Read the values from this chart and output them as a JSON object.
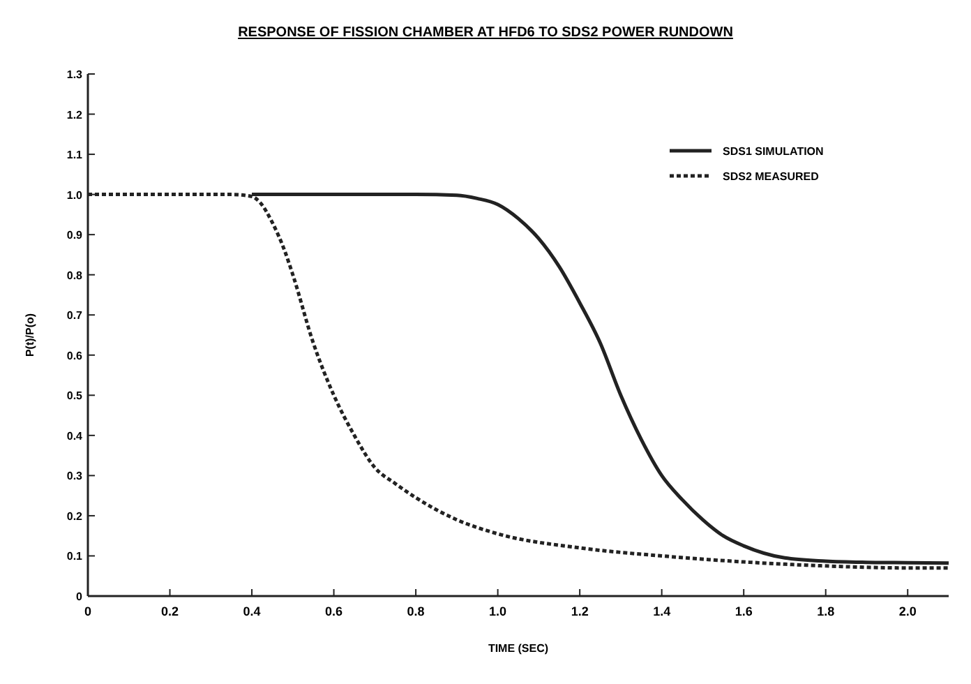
{
  "chart_data": {
    "type": "line",
    "title": "RESPONSE OF FISSION CHAMBER AT HFD6 TO SDS2 POWER RUNDOWN",
    "xlabel": "TIME (SEC)",
    "ylabel": "P(t)/P(o)",
    "xlim": [
      0,
      2.1
    ],
    "xticks": [
      0,
      0.2,
      0.4,
      0.6,
      0.8,
      {
        "value": 1,
        "label": "1.0"
      },
      1.2,
      1.4,
      1.6,
      1.8,
      {
        "value": 2,
        "label": "2.0"
      }
    ],
    "ylim": [
      0,
      1.3
    ],
    "yticks": [
      0,
      0.1,
      0.2,
      0.3,
      0.4,
      0.5,
      0.6,
      0.7,
      0.8,
      0.9,
      {
        "value": 1,
        "label": "1.0"
      },
      1.1,
      1.2,
      1.3
    ],
    "grid": false,
    "legend": "top right",
    "series": [
      {
        "name": "SDS1 SIMULATION",
        "color": "#222222",
        "line_style": "solid",
        "x": [
          0.4,
          0.6,
          0.8,
          0.9,
          0.95,
          1.0,
          1.05,
          1.1,
          1.15,
          1.2,
          1.25,
          1.3,
          1.35,
          1.4,
          1.45,
          1.5,
          1.55,
          1.6,
          1.7,
          1.8,
          1.9,
          2.0,
          2.1
        ],
        "values": [
          1.0,
          1.0,
          1.0,
          0.998,
          0.99,
          0.975,
          0.94,
          0.89,
          0.82,
          0.73,
          0.63,
          0.5,
          0.39,
          0.3,
          0.24,
          0.19,
          0.15,
          0.125,
          0.095,
          0.087,
          0.084,
          0.083,
          0.082
        ]
      },
      {
        "name": "SDS2 MEASURED",
        "color": "#222222",
        "line_style": "dotted",
        "x": [
          0,
          0.2,
          0.35,
          0.4,
          0.42,
          0.45,
          0.48,
          0.5,
          0.55,
          0.6,
          0.65,
          0.7,
          0.75,
          0.8,
          0.9,
          1.0,
          1.2,
          1.4,
          1.6,
          1.8,
          2.0,
          2.1
        ],
        "values": [
          1.0,
          1.0,
          1.0,
          0.995,
          0.98,
          0.93,
          0.86,
          0.8,
          0.63,
          0.5,
          0.4,
          0.32,
          0.28,
          0.245,
          0.19,
          0.155,
          0.12,
          0.1,
          0.085,
          0.075,
          0.07,
          0.07
        ]
      }
    ]
  }
}
